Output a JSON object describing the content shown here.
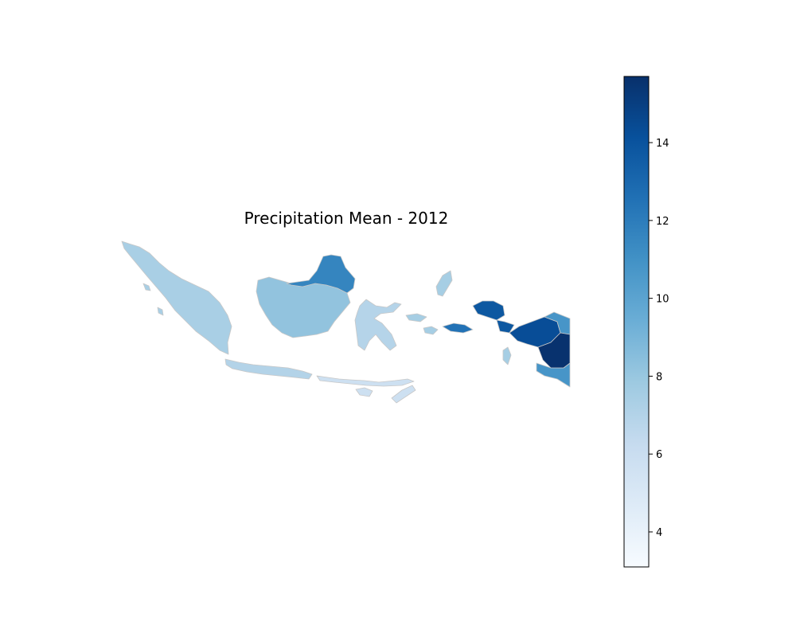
{
  "title": "Precipitation Mean - 2012",
  "colormap": {
    "name": "Blues",
    "min": 3.1,
    "max": 15.7,
    "stops": [
      "#f7fbff",
      "#deebf7",
      "#c6dbef",
      "#9ecae1",
      "#6baed6",
      "#4292c6",
      "#2171b5",
      "#08519c",
      "#08306b"
    ],
    "ticks": [
      {
        "value": 4,
        "label": "4"
      },
      {
        "value": 6,
        "label": "6"
      },
      {
        "value": 8,
        "label": "8"
      },
      {
        "value": 10,
        "label": "10"
      },
      {
        "value": 12,
        "label": "12"
      },
      {
        "value": 14,
        "label": "14"
      }
    ]
  },
  "colors": {
    "region_border": "#c8c8c8",
    "background": "#ffffff"
  },
  "regions": [
    {
      "name": "sumatra",
      "value": 7.4
    },
    {
      "name": "java",
      "value": 7.0
    },
    {
      "name": "lesser-sunda",
      "value": 5.8
    },
    {
      "name": "kalimantan",
      "value": 8.2
    },
    {
      "name": "kalimantan-north",
      "value": 11.6
    },
    {
      "name": "sulawesi",
      "value": 6.9
    },
    {
      "name": "maluku",
      "value": 7.5
    },
    {
      "name": "seram",
      "value": 12.5
    },
    {
      "name": "papua-west",
      "value": 13.8
    },
    {
      "name": "papua-central",
      "value": 14.3
    },
    {
      "name": "papua-south",
      "value": 15.6
    },
    {
      "name": "papua-east",
      "value": 10.8
    }
  ]
}
